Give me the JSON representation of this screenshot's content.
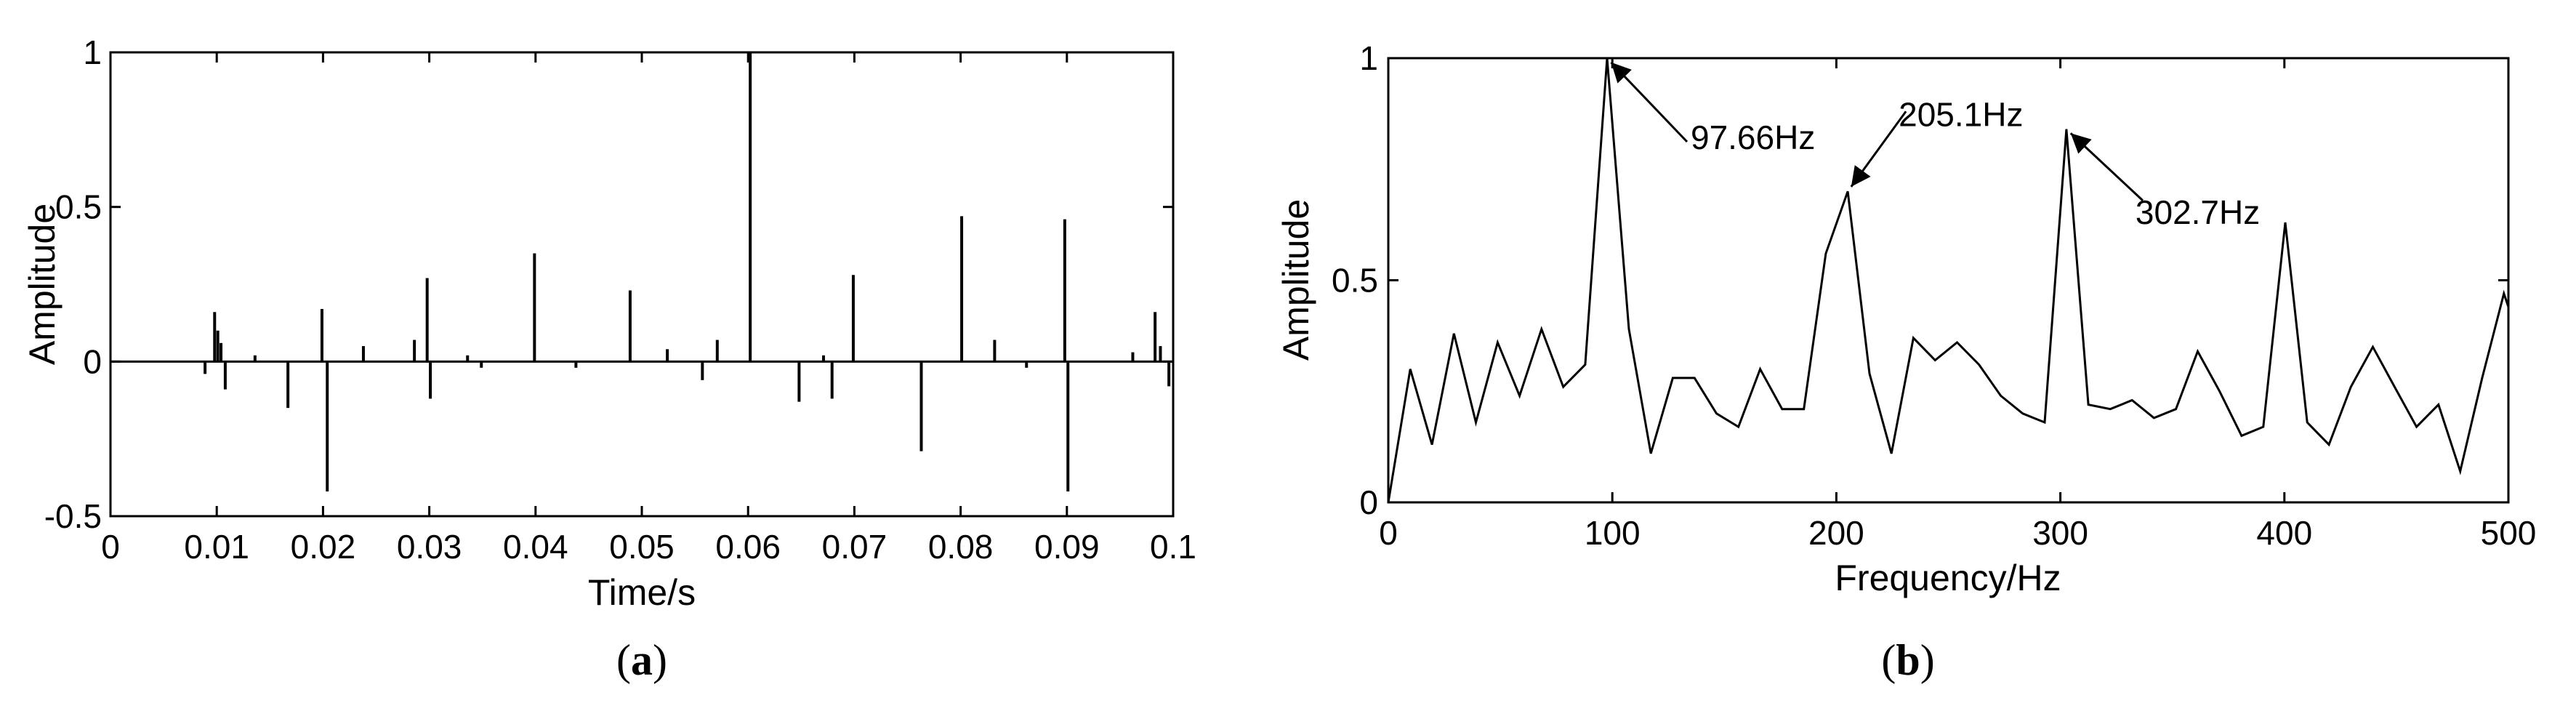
{
  "chart_data": [
    {
      "panel": "(a)",
      "type": "line",
      "xlabel": "Time/s",
      "ylabel": "Amplitude",
      "xlim": [
        0,
        0.1
      ],
      "ylim": [
        -0.5,
        1
      ],
      "xticks": [
        "0",
        "0.01",
        "0.02",
        "0.03",
        "0.04",
        "0.05",
        "0.06",
        "0.07",
        "0.08",
        "0.09",
        "0.1"
      ],
      "yticks": [
        "-0.5",
        "0",
        "0.5",
        "1"
      ],
      "grid": false,
      "impulses": [
        {
          "x": 0.0089,
          "y": -0.04
        },
        {
          "x": 0.0098,
          "y": 0.16
        },
        {
          "x": 0.0101,
          "y": 0.1
        },
        {
          "x": 0.0104,
          "y": 0.06
        },
        {
          "x": 0.0108,
          "y": -0.09
        },
        {
          "x": 0.0136,
          "y": 0.02
        },
        {
          "x": 0.0167,
          "y": -0.15
        },
        {
          "x": 0.0199,
          "y": 0.17
        },
        {
          "x": 0.0204,
          "y": -0.42
        },
        {
          "x": 0.0238,
          "y": 0.05
        },
        {
          "x": 0.0286,
          "y": 0.07
        },
        {
          "x": 0.0298,
          "y": 0.27
        },
        {
          "x": 0.0301,
          "y": -0.12
        },
        {
          "x": 0.0336,
          "y": 0.02
        },
        {
          "x": 0.0349,
          "y": -0.02
        },
        {
          "x": 0.0399,
          "y": 0.35
        },
        {
          "x": 0.0438,
          "y": -0.02
        },
        {
          "x": 0.0489,
          "y": 0.23
        },
        {
          "x": 0.0524,
          "y": 0.04
        },
        {
          "x": 0.0557,
          "y": -0.06
        },
        {
          "x": 0.0571,
          "y": 0.07
        },
        {
          "x": 0.0602,
          "y": 1.0
        },
        {
          "x": 0.0648,
          "y": -0.13
        },
        {
          "x": 0.0671,
          "y": 0.02
        },
        {
          "x": 0.0679,
          "y": -0.12
        },
        {
          "x": 0.0699,
          "y": 0.28
        },
        {
          "x": 0.0763,
          "y": -0.29
        },
        {
          "x": 0.0801,
          "y": 0.47
        },
        {
          "x": 0.0832,
          "y": 0.07
        },
        {
          "x": 0.0862,
          "y": -0.02
        },
        {
          "x": 0.0898,
          "y": 0.46
        },
        {
          "x": 0.0901,
          "y": -0.42
        },
        {
          "x": 0.0962,
          "y": 0.03
        },
        {
          "x": 0.0983,
          "y": 0.16
        },
        {
          "x": 0.0988,
          "y": 0.05
        },
        {
          "x": 0.0996,
          "y": -0.08
        }
      ]
    },
    {
      "panel": "(b)",
      "type": "line",
      "xlabel": "Frequency/Hz",
      "ylabel": "Amplitude",
      "xlim": [
        0,
        500
      ],
      "ylim": [
        0,
        1
      ],
      "xticks": [
        "0",
        "100",
        "200",
        "300",
        "400",
        "500"
      ],
      "yticks": [
        "0",
        "0.5",
        "1"
      ],
      "grid": false,
      "x": [
        0,
        9.8,
        19.5,
        29.3,
        39.1,
        48.8,
        58.6,
        68.4,
        78.1,
        87.9,
        97.66,
        107.4,
        117.2,
        127,
        136.7,
        146.5,
        156.3,
        166,
        175.8,
        185.5,
        195.3,
        205.1,
        214.8,
        224.6,
        234.4,
        244.1,
        253.9,
        263.7,
        273.4,
        283.2,
        293,
        302.7,
        312.5,
        322.3,
        332,
        341.8,
        351.6,
        361.3,
        371.1,
        380.9,
        390.6,
        400.4,
        410.2,
        419.9,
        429.7,
        439.5,
        449.2,
        459,
        468.8,
        478.5,
        488.3,
        498,
        500
      ],
      "y": [
        0.0,
        0.3,
        0.13,
        0.38,
        0.18,
        0.36,
        0.24,
        0.39,
        0.26,
        0.31,
        1.0,
        0.39,
        0.11,
        0.28,
        0.28,
        0.2,
        0.17,
        0.3,
        0.21,
        0.21,
        0.56,
        0.7,
        0.29,
        0.11,
        0.37,
        0.32,
        0.36,
        0.31,
        0.24,
        0.2,
        0.18,
        0.84,
        0.22,
        0.21,
        0.23,
        0.19,
        0.21,
        0.34,
        0.25,
        0.15,
        0.17,
        0.63,
        0.18,
        0.13,
        0.26,
        0.35,
        0.26,
        0.17,
        0.22,
        0.07,
        0.28,
        0.47,
        0.44
      ],
      "annotations": [
        {
          "text": "97.66Hz",
          "x": 97.66,
          "y": 1.0
        },
        {
          "text": "205.1Hz",
          "x": 205.1,
          "y": 0.7
        },
        {
          "text": "302.7Hz",
          "x": 302.7,
          "y": 0.84
        }
      ]
    }
  ],
  "captions": {
    "a_open": "(",
    "a_letter": "a",
    "a_close": ")",
    "b_open": "(",
    "b_letter": "b",
    "b_close": ")"
  }
}
